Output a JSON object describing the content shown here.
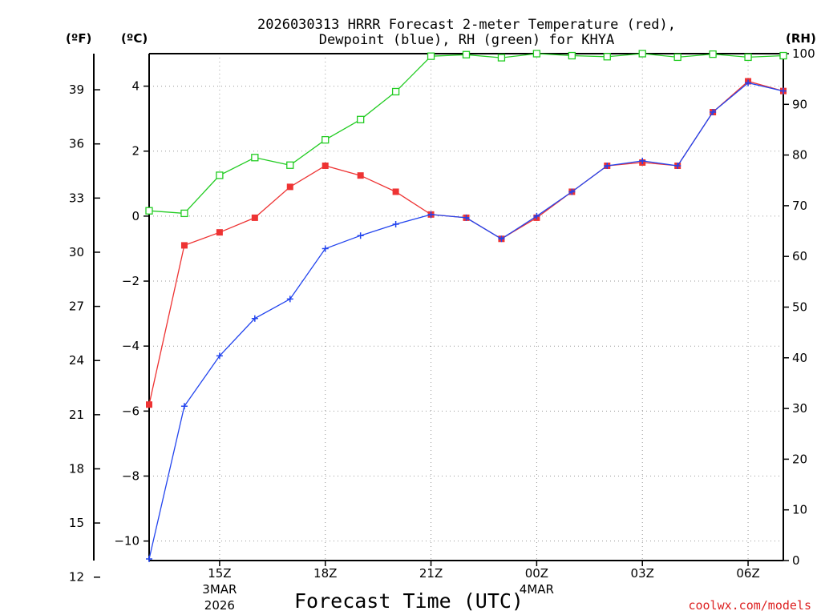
{
  "chart_data": {
    "type": "line",
    "title_line1": "2026030313 HRRR Forecast 2-meter Temperature (red),",
    "title_line2": "Dewpoint (blue), RH (green) for KHYA",
    "xlabel": "Forecast Time (UTC)",
    "credit": "coolwx.com/models",
    "left_unit_f": "(ºF)",
    "left_unit_c": "(ºC)",
    "right_unit": "(RH)",
    "x_hours": [
      13,
      14,
      15,
      16,
      17,
      18,
      19,
      20,
      21,
      22,
      23,
      24,
      25,
      26,
      27,
      28,
      29,
      30,
      31
    ],
    "x_range": [
      13,
      31
    ],
    "x_ticks": [
      {
        "h": 15,
        "label": "15Z",
        "sub1": "3MAR",
        "sub2": "2026"
      },
      {
        "h": 18,
        "label": "18Z",
        "sub1": "",
        "sub2": ""
      },
      {
        "h": 21,
        "label": "21Z",
        "sub1": "",
        "sub2": ""
      },
      {
        "h": 24,
        "label": "00Z",
        "sub1": "4MAR",
        "sub2": ""
      },
      {
        "h": 27,
        "label": "03Z",
        "sub1": "",
        "sub2": ""
      },
      {
        "h": 30,
        "label": "06Z",
        "sub1": "",
        "sub2": ""
      }
    ],
    "ylim_c": [
      -10.6,
      5.0
    ],
    "y_ticks_c": [
      -10,
      -8,
      -6,
      -4,
      -2,
      0,
      2,
      4
    ],
    "y_ticks_f": [
      12,
      15,
      18,
      21,
      24,
      27,
      30,
      33,
      36,
      39
    ],
    "ylim_rh": [
      0,
      100
    ],
    "y_ticks_rh": [
      0,
      10,
      20,
      30,
      40,
      50,
      60,
      70,
      80,
      90,
      100
    ],
    "series": [
      {
        "name": "Temperature",
        "unit": "C",
        "color": "#ee3333",
        "marker": "filled-square",
        "values": [
          -5.8,
          -0.9,
          -0.5,
          -0.05,
          0.9,
          1.55,
          1.25,
          0.75,
          0.05,
          -0.05,
          -0.7,
          -0.05,
          0.75,
          1.55,
          1.65,
          1.55,
          3.2,
          4.15,
          3.85
        ]
      },
      {
        "name": "Dewpoint",
        "unit": "C",
        "color": "#2244ee",
        "marker": "plus",
        "values": [
          -10.55,
          -5.85,
          -4.3,
          -3.15,
          -2.55,
          -1.0,
          -0.6,
          -0.25,
          0.05,
          -0.05,
          -0.7,
          0.0,
          0.75,
          1.55,
          1.7,
          1.55,
          3.2,
          4.1,
          3.85
        ]
      },
      {
        "name": "RH",
        "unit": "%",
        "color": "#22cc22",
        "marker": "open-square",
        "values": [
          69,
          68.5,
          76,
          79.5,
          78,
          83,
          87,
          92.5,
          99.5,
          99.8,
          99.2,
          100,
          99.6,
          99.4,
          100,
          99.3,
          99.9,
          99.3,
          99.6
        ]
      }
    ]
  }
}
